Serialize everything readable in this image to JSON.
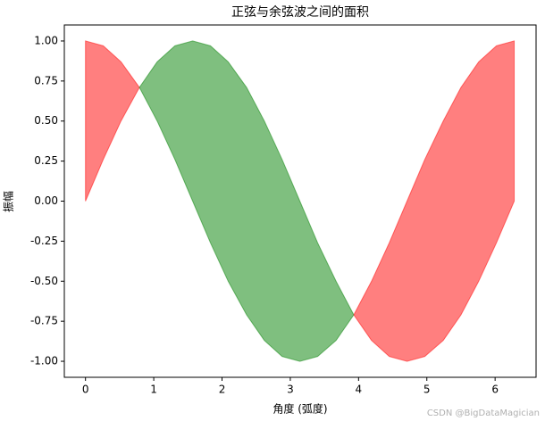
{
  "chart_data": {
    "type": "fill_between",
    "title": "正弦与余弦波之间的面积",
    "x_label": "角度 (弧度)",
    "y_label": "振幅",
    "watermark": "CSDN @BigDataMagician",
    "x": [
      0,
      0.26,
      0.52,
      0.79,
      1.05,
      1.31,
      1.57,
      1.83,
      2.09,
      2.36,
      2.62,
      2.88,
      3.14,
      3.4,
      3.67,
      3.93,
      4.19,
      4.45,
      4.71,
      4.97,
      5.24,
      5.5,
      5.76,
      6.02,
      6.28
    ],
    "series": [
      {
        "values": [
          0,
          0.26,
          0.5,
          0.71,
          0.87,
          0.97,
          1,
          0.97,
          0.87,
          0.71,
          0.5,
          0.26,
          0,
          -0.26,
          -0.5,
          -0.71,
          -0.87,
          -0.97,
          -1,
          -0.97,
          -0.87,
          -0.71,
          -0.5,
          -0.26,
          0
        ]
      },
      {
        "values": [
          1,
          0.97,
          0.87,
          0.71,
          0.5,
          0.26,
          0,
          -0.26,
          -0.5,
          -0.71,
          -0.87,
          -0.97,
          -1,
          -0.97,
          -0.87,
          -0.71,
          -0.5,
          -0.26,
          0,
          0.26,
          0.5,
          0.71,
          0.87,
          0.97,
          1
        ]
      }
    ],
    "fill_above_color": "#008000",
    "fill_below_color": "#ff0000",
    "alpha": 0.5,
    "xlim": [
      -0.31,
      6.6
    ],
    "ylim": [
      -1.1,
      1.1
    ],
    "xticks": [
      0,
      1,
      2,
      3,
      4,
      5,
      6
    ],
    "yticks": [
      {
        "value": -1,
        "label": "-1.00"
      },
      {
        "value": -0.75,
        "label": "-0.75"
      },
      {
        "value": -0.5,
        "label": "-0.50"
      },
      {
        "value": -0.25,
        "label": "-0.25"
      },
      {
        "value": 0,
        "label": "0.00"
      },
      {
        "value": 0.25,
        "label": "0.25"
      },
      {
        "value": 0.5,
        "label": "0.50"
      },
      {
        "value": 0.75,
        "label": "0.75"
      },
      {
        "value": 1,
        "label": "1.00"
      }
    ]
  }
}
